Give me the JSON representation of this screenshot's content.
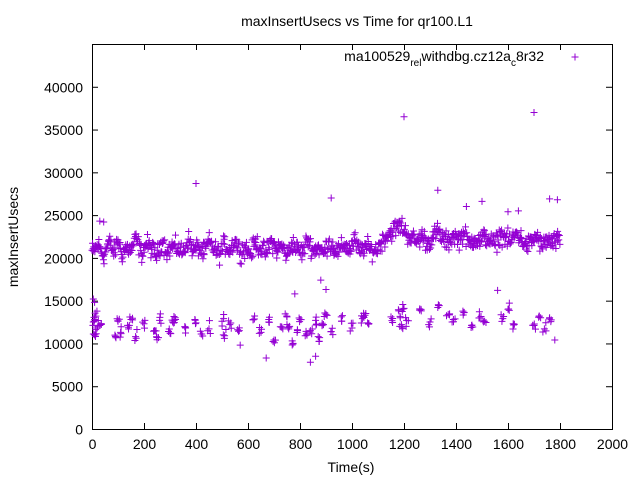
{
  "chart_data": {
    "type": "scatter",
    "title": "maxInsertUsecs vs Time for qr100.L1",
    "xlabel": "Time(s)",
    "ylabel": "maxInsertUsecs",
    "xlim": [
      0,
      2000
    ],
    "ylim": [
      0,
      45000
    ],
    "x_ticks": [
      0,
      200,
      400,
      600,
      800,
      1000,
      1200,
      1400,
      1600,
      1800,
      2000
    ],
    "x_tick_labels": [
      "0",
      "200",
      "400",
      "600",
      "800",
      "1000",
      "1200",
      "1400",
      "1600",
      "1800",
      "2000"
    ],
    "y_ticks": [
      0,
      5000,
      10000,
      15000,
      20000,
      25000,
      30000,
      35000,
      40000
    ],
    "y_tick_labels": [
      "0",
      "5000",
      "10000",
      "15000",
      "20000",
      "25000",
      "30000",
      "35000",
      "40000"
    ],
    "grid": false,
    "legend_position": "top-right",
    "series": [
      {
        "name": "ma100529",
        "name_sub1": "rel",
        "name_mid": "withdbg.cz12a",
        "name_sub2": "c",
        "name_tail": "8r32",
        "color": "#9400d3",
        "marker": "+",
        "upper_band": {
          "x": [
            5,
            25,
            45,
            65,
            85,
            100,
            115,
            130,
            150,
            170,
            190,
            210,
            230,
            250,
            270,
            290,
            310,
            330,
            350,
            370,
            390,
            410,
            430,
            450,
            470,
            490,
            510,
            530,
            550,
            570,
            590,
            610,
            630,
            650,
            670,
            690,
            710,
            730,
            750,
            770,
            790,
            810,
            830,
            850,
            870,
            890,
            910,
            930,
            950,
            970,
            990,
            1010,
            1030,
            1050,
            1070,
            1090,
            1110,
            1130,
            1150,
            1170,
            1190,
            1210,
            1230,
            1250,
            1270,
            1290,
            1310,
            1330,
            1350,
            1370,
            1390,
            1410,
            1430,
            1450,
            1470,
            1490,
            1510,
            1530,
            1550,
            1570,
            1590,
            1610,
            1630,
            1650,
            1670,
            1690,
            1710,
            1730,
            1750,
            1770,
            1790
          ],
          "y": [
            20800,
            21500,
            20200,
            21900,
            20600,
            22100,
            20400,
            21200,
            20900,
            22300,
            20500,
            21700,
            21000,
            20300,
            22000,
            20700,
            21400,
            21100,
            20600,
            22200,
            20800,
            21300,
            20500,
            21900,
            21000,
            20400,
            21600,
            20900,
            22100,
            20700,
            21200,
            20500,
            21800,
            21100,
            20600,
            22000,
            20900,
            21400,
            20300,
            21700,
            21000,
            20600,
            22200,
            20800,
            21300,
            20500,
            21900,
            21100,
            20700,
            21600,
            20900,
            22100,
            20600,
            21400,
            21000,
            20800,
            21700,
            22500,
            23000,
            23500,
            23800,
            22800,
            22300,
            21900,
            22600,
            21700,
            22400,
            23100,
            22200,
            21800,
            22700,
            22100,
            22900,
            21600,
            22300,
            21900,
            22500,
            22100,
            21500,
            22700,
            22400,
            21800,
            22900,
            22300,
            21400,
            21800,
            22600,
            21300,
            22100,
            21700,
            22000
          ],
          "jitter": 1600
        },
        "lower_band": {
          "x": [
            5,
            10,
            15,
            20,
            30,
            90,
            100,
            110,
            140,
            150,
            170,
            200,
            240,
            250,
            260,
            300,
            310,
            320,
            360,
            400,
            420,
            450,
            500,
            510,
            530,
            560,
            620,
            650,
            680,
            700,
            730,
            750,
            760,
            770,
            790,
            800,
            820,
            840,
            860,
            870,
            890,
            900,
            920,
            960,
            1000,
            1040,
            1050,
            1060,
            1150,
            1180,
            1190,
            1200,
            1210,
            1260,
            1300,
            1330,
            1370,
            1390,
            1430,
            1460,
            1490,
            1510,
            1580,
            1600,
            1620,
            1700,
            1720,
            1740,
            1760
          ],
          "y": [
            12500,
            11000,
            13200,
            11800,
            12100,
            10800,
            12600,
            11300,
            11900,
            12800,
            10600,
            12300,
            11500,
            10700,
            12700,
            11200,
            12500,
            13000,
            11800,
            12400,
            11100,
            11700,
            12600,
            10900,
            12200,
            11600,
            12800,
            11300,
            12500,
            10400,
            11900,
            13100,
            12000,
            10300,
            11600,
            12800,
            10900,
            11500,
            12700,
            10800,
            12200,
            13400,
            11400,
            12600,
            11800,
            12900,
            13300,
            12400,
            13100,
            13800,
            12200,
            14100,
            12700,
            13900,
            12500,
            14200,
            13400,
            12800,
            13600,
            12100,
            13700,
            12600,
            12900,
            14000,
            12300,
            12100,
            13200,
            11700,
            13000
          ],
          "jitter": 1200
        },
        "outliers": {
          "x": [
            5,
            10,
            30,
            45,
            400,
            840,
            880,
            900,
            920,
            1200,
            1330,
            1440,
            1500,
            1560,
            1600,
            1640,
            1700,
            1790,
            780,
            860,
            1780,
            670,
            570,
            1760
          ],
          "y": [
            15200,
            14800,
            24300,
            24200,
            28700,
            7800,
            17400,
            16300,
            27000,
            36500,
            27900,
            26000,
            26600,
            16200,
            25400,
            25500,
            37000,
            26800,
            15800,
            8500,
            10400,
            8300,
            9800,
            26900
          ]
        }
      }
    ]
  }
}
